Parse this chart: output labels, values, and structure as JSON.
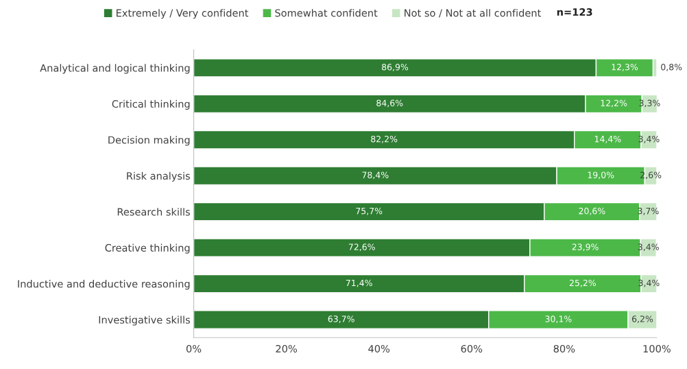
{
  "chart_data": {
    "type": "bar",
    "orientation": "horizontal",
    "stacked": true,
    "categories": [
      "Analytical and logical thinking",
      "Critical thinking",
      "Decision making",
      "Risk analysis",
      "Research skills",
      "Creative thinking",
      "Inductive and deductive reasoning",
      "Investigative skills"
    ],
    "series": [
      {
        "name": "Extremely / Very confident",
        "color": "#2e7d32",
        "values": [
          86.9,
          84.6,
          82.2,
          78.4,
          75.7,
          72.6,
          71.4,
          63.7
        ],
        "value_labels": [
          "86,9%",
          "84,6%",
          "82,2%",
          "78,4%",
          "75,7%",
          "72,6%",
          "71,4%",
          "63,7%"
        ]
      },
      {
        "name": "Somewhat confident",
        "color": "#4cb848",
        "values": [
          12.3,
          12.2,
          14.4,
          19.0,
          20.6,
          23.9,
          25.2,
          30.1
        ],
        "value_labels": [
          "12,3%",
          "12,2%",
          "14,4%",
          "19,0%",
          "20,6%",
          "23,9%",
          "25,2%",
          "30,1%"
        ]
      },
      {
        "name": "Not so / Not at all confident",
        "color": "#c8e6c4",
        "values": [
          0.8,
          3.3,
          3.4,
          2.6,
          3.7,
          3.4,
          3.4,
          6.2
        ],
        "value_labels": [
          "0,8%",
          "3,3%",
          "3,4%",
          "2,6%",
          "3,7%",
          "3,4%",
          "3,4%",
          "6,2%"
        ]
      }
    ],
    "xlim": [
      0,
      100
    ],
    "xticks": [
      {
        "value": 0,
        "label": "0%"
      },
      {
        "value": 20,
        "label": "20%"
      },
      {
        "value": 40,
        "label": "40%"
      },
      {
        "value": 60,
        "label": "60%"
      },
      {
        "value": 80,
        "label": "80%"
      },
      {
        "value": 100,
        "label": "100%"
      }
    ],
    "legend": "top",
    "grid": false,
    "annotations": [
      "n=123"
    ]
  }
}
